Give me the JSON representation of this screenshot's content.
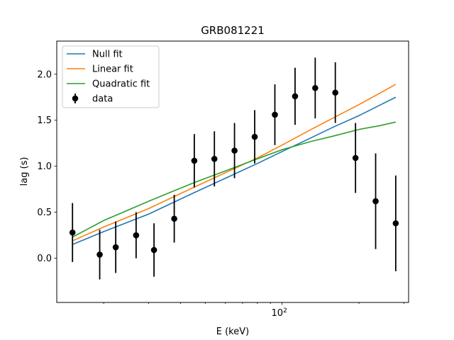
{
  "chart_data": {
    "type": "scatter",
    "title": "GRB081221",
    "xlabel": "E (keV)",
    "ylabel": "lag (s)",
    "xscale": "log",
    "xlim": [
      13.1,
      313
    ],
    "ylim": [
      -0.48,
      2.36
    ],
    "grid": false,
    "legend_position": "top-left",
    "x_major_ticks": [
      {
        "value": 100,
        "base": "10",
        "exp": "2"
      }
    ],
    "x_minor_ticks": [
      20,
      30,
      40,
      50,
      60,
      70,
      80,
      90,
      200,
      300
    ],
    "y_ticks": [
      {
        "value": 0.0,
        "label": "0.0"
      },
      {
        "value": 0.5,
        "label": "0.5"
      },
      {
        "value": 1.0,
        "label": "1.0"
      },
      {
        "value": 1.5,
        "label": "1.5"
      },
      {
        "value": 2.0,
        "label": "2.0"
      }
    ],
    "points": {
      "name": "data",
      "color": "#000000",
      "x": [
        15.1,
        19.3,
        22.3,
        26.8,
        31.5,
        37.8,
        45.3,
        54.3,
        65.1,
        78.1,
        93.7,
        112.4,
        134.8,
        161.6,
        193.9,
        232.5,
        278.7
      ],
      "y": [
        0.28,
        0.04,
        0.12,
        0.25,
        0.09,
        0.43,
        1.06,
        1.08,
        1.17,
        1.32,
        1.56,
        1.76,
        1.85,
        1.8,
        1.09,
        0.62,
        0.38
      ],
      "yerr": [
        0.32,
        0.27,
        0.28,
        0.25,
        0.29,
        0.26,
        0.29,
        0.3,
        0.3,
        0.29,
        0.33,
        0.31,
        0.33,
        0.33,
        0.38,
        0.52,
        0.52
      ]
    },
    "series": [
      {
        "name": "Null fit",
        "color": "#1f77b4",
        "x": [
          15.1,
          20,
          30,
          45,
          60,
          80,
          100,
          130,
          160,
          200,
          240,
          278.7
        ],
        "y": [
          0.15,
          0.29,
          0.48,
          0.71,
          0.87,
          1.03,
          1.16,
          1.31,
          1.43,
          1.55,
          1.66,
          1.75
        ]
      },
      {
        "name": "Linear fit",
        "color": "#ff7f0e",
        "x": [
          15.1,
          20,
          30,
          45,
          60,
          80,
          100,
          130,
          160,
          200,
          240,
          278.7
        ],
        "y": [
          0.19,
          0.34,
          0.54,
          0.77,
          0.93,
          1.09,
          1.23,
          1.4,
          1.53,
          1.67,
          1.79,
          1.89
        ]
      },
      {
        "name": "Quadratic fit",
        "color": "#2ca02c",
        "x": [
          15.1,
          20,
          30,
          45,
          60,
          80,
          100,
          130,
          160,
          200,
          240,
          278.7
        ],
        "y": [
          0.23,
          0.41,
          0.62,
          0.82,
          0.95,
          1.08,
          1.18,
          1.27,
          1.33,
          1.4,
          1.44,
          1.48
        ]
      }
    ]
  }
}
